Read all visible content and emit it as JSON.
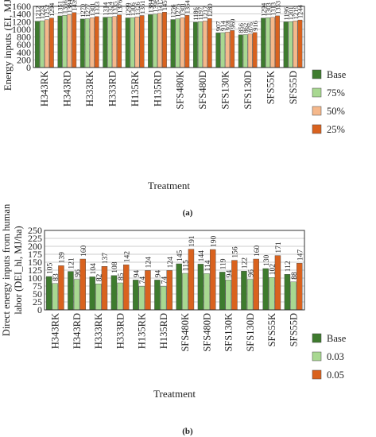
{
  "colors": {
    "base": "#3e7b2e",
    "light_green": "#a8d891",
    "light_orange": "#f5b88b",
    "orange": "#d9621e",
    "border": "#333333",
    "grid": "#bdbdbd"
  },
  "chart_data": [
    {
      "type": "bar",
      "panel_label": "(a)",
      "ylabel": "Energy inputs (EI, MJ/ha)",
      "xlabel": "Treatment",
      "ylim": [
        0,
        1600
      ],
      "yticks": [
        0,
        200,
        400,
        600,
        800,
        1000,
        1200,
        1400,
        1600
      ],
      "grid": true,
      "legend_position": "right",
      "categories": [
        "H343RK",
        "H343RD",
        "H333RK",
        "H333RD",
        "H135RK",
        "H135RD",
        "SFS480K",
        "SFS480D",
        "SFS130K",
        "SFS130D",
        "SFS55K",
        "SFS55D"
      ],
      "series": [
        {
          "name": "Base",
          "color": "#3e7b2e",
          "values": [
            1212,
            1351,
            1270,
            1314,
            1299,
            1384,
            1256,
            1186,
            907,
            856,
            1294,
            1196
          ]
        },
        {
          "name": "75%",
          "color": "#a8d891",
          "values": [
            1224,
            1366,
            1277,
            1324,
            1306,
            1398,
            1276,
            1197,
            914,
            862,
            1303,
            1201
          ]
        },
        {
          "name": "50%",
          "color": "#f5b88b",
          "values": [
            1252,
            1384,
            1301,
            1335,
            1326,
            1417,
            1301,
            1217,
            928,
            876,
            1313,
            1219
          ]
        },
        {
          "name": "25%",
          "color": "#d9621e",
          "values": [
            1294,
            1439,
            1333,
            1376,
            1361,
            1450,
            1364,
            1280,
            969,
            916,
            1353,
            1244
          ]
        }
      ]
    },
    {
      "type": "bar",
      "panel_label": "(b)",
      "ylabel_line1": "Direct energy inputs from human",
      "ylabel_line2": "labor (DEI_hl, MJ/ha)",
      "xlabel": "Treatment",
      "ylim": [
        0,
        250
      ],
      "yticks": [
        0,
        25,
        50,
        75,
        100,
        125,
        150,
        175,
        200,
        225,
        250
      ],
      "grid": true,
      "legend_position": "right",
      "categories": [
        "H343RK",
        "H343RD",
        "H333RK",
        "H333RD",
        "H135RK",
        "H135RD",
        "SFS480K",
        "SFS480D",
        "SFS130K",
        "SFS130D",
        "SFS55K",
        "SFS55D"
      ],
      "series": [
        {
          "name": "Base",
          "color": "#3e7b2e",
          "values": [
            105,
            121,
            104,
            108,
            94,
            94,
            145,
            144,
            119,
            122,
            130,
            112
          ]
        },
        {
          "name": "0.03",
          "color": "#a8d891",
          "values": [
            83,
            96,
            82,
            85,
            74,
            74,
            115,
            114,
            94,
            96,
            102,
            88
          ]
        },
        {
          "name": "0.05",
          "color": "#d9621e",
          "values": [
            139,
            160,
            137,
            142,
            124,
            124,
            191,
            190,
            156,
            160,
            171,
            147
          ]
        }
      ]
    }
  ]
}
